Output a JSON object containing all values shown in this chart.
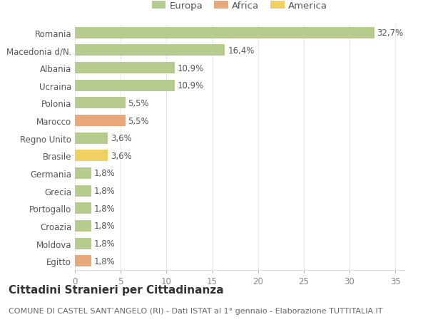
{
  "categories": [
    "Romania",
    "Macedonia d/N.",
    "Albania",
    "Ucraina",
    "Polonia",
    "Marocco",
    "Regno Unito",
    "Brasile",
    "Germania",
    "Grecia",
    "Portogallo",
    "Croazia",
    "Moldova",
    "Egitto"
  ],
  "values": [
    32.7,
    16.4,
    10.9,
    10.9,
    5.5,
    5.5,
    3.6,
    3.6,
    1.8,
    1.8,
    1.8,
    1.8,
    1.8,
    1.8
  ],
  "labels": [
    "32,7%",
    "16,4%",
    "10,9%",
    "10,9%",
    "5,5%",
    "5,5%",
    "3,6%",
    "3,6%",
    "1,8%",
    "1,8%",
    "1,8%",
    "1,8%",
    "1,8%",
    "1,8%"
  ],
  "continents": [
    "Europa",
    "Europa",
    "Europa",
    "Europa",
    "Europa",
    "Africa",
    "Europa",
    "America",
    "Europa",
    "Europa",
    "Europa",
    "Europa",
    "Europa",
    "Africa"
  ],
  "colors": {
    "Europa": "#b5cc8e",
    "Africa": "#e8a87c",
    "America": "#f0d060"
  },
  "title": "Cittadini Stranieri per Cittadinanza",
  "subtitle": "COMUNE DI CASTEL SANT’ANGELO (RI) - Dati ISTAT al 1° gennaio - Elaborazione TUTTITALIA.IT",
  "xlim": [
    0,
    36
  ],
  "xticks": [
    0,
    5,
    10,
    15,
    20,
    25,
    30,
    35
  ],
  "bg_color": "#ffffff",
  "grid_color": "#e8e8e8",
  "bar_height": 0.65,
  "title_fontsize": 11,
  "subtitle_fontsize": 8,
  "label_fontsize": 8.5,
  "tick_fontsize": 8.5,
  "legend_fontsize": 9.5
}
